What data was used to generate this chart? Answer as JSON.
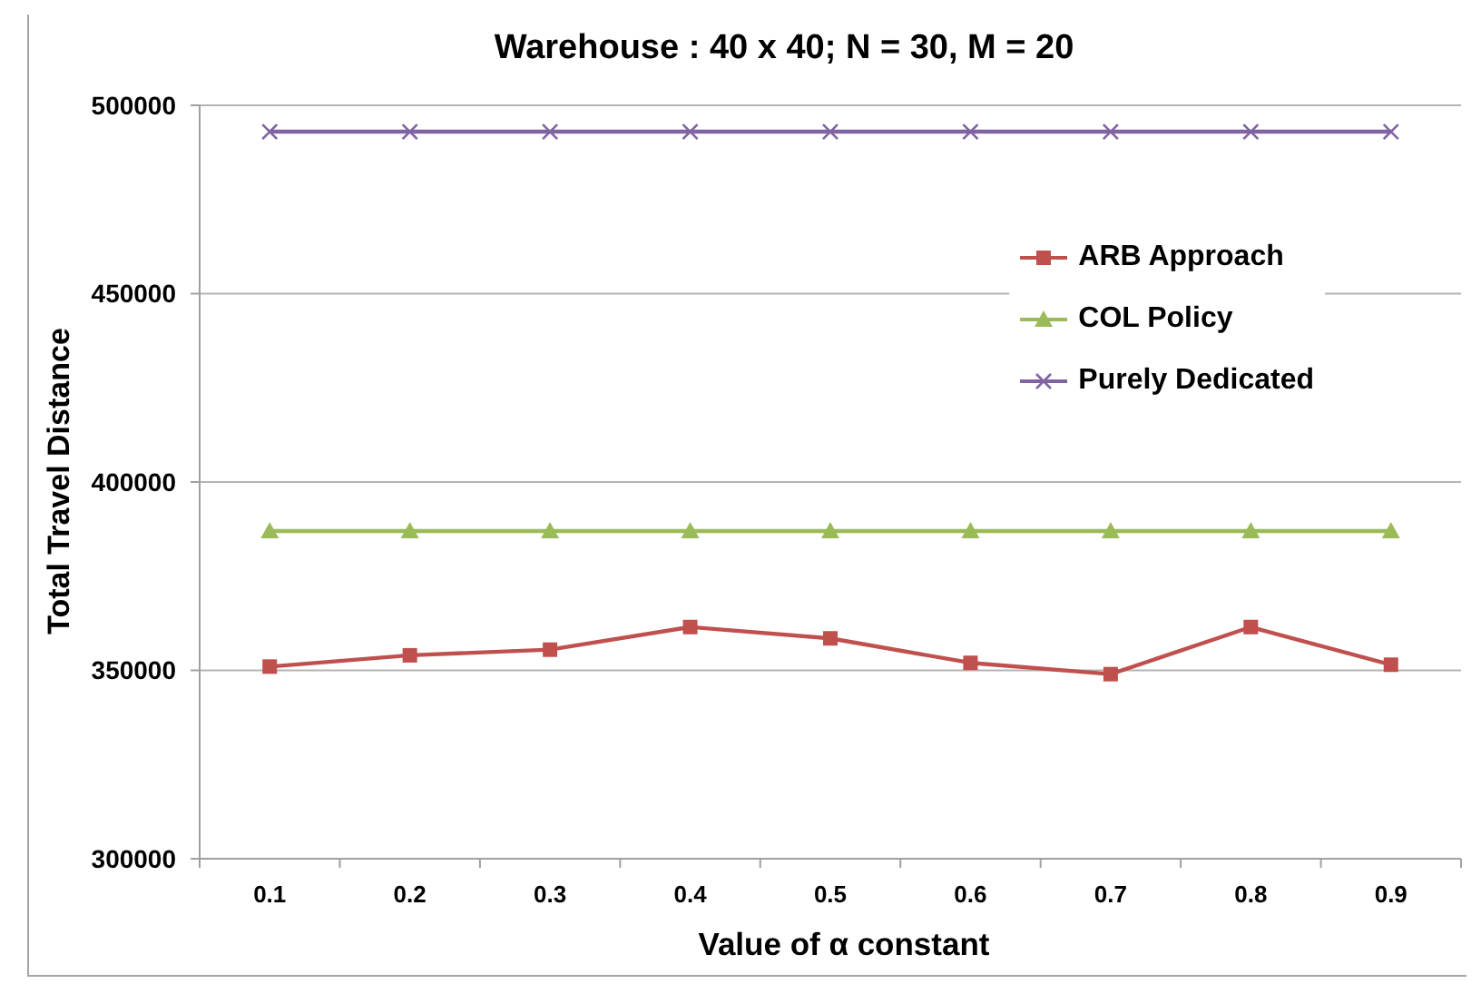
{
  "chart_data": {
    "type": "line",
    "title": "Warehouse : 40 x 40; N = 30, M = 20",
    "xlabel": "Value of α constant",
    "ylabel": "Total Travel Distance",
    "categories": [
      "0.1",
      "0.2",
      "0.3",
      "0.4",
      "0.5",
      "0.6",
      "0.7",
      "0.8",
      "0.9"
    ],
    "series": [
      {
        "name": "ARB Approach",
        "color": "#c0504d",
        "marker": "square",
        "values": [
          351000,
          354000,
          355500,
          361500,
          358500,
          352000,
          349000,
          361500,
          351500
        ]
      },
      {
        "name": "COL Policy",
        "color": "#9bbb59",
        "marker": "triangle",
        "values": [
          387000,
          387000,
          387000,
          387000,
          387000,
          387000,
          387000,
          387000,
          387000
        ]
      },
      {
        "name": "Purely Dedicated",
        "color": "#8064a2",
        "marker": "cross",
        "values": [
          493000,
          493000,
          493000,
          493000,
          493000,
          493000,
          493000,
          493000,
          493000
        ]
      }
    ],
    "ylim": [
      300000,
      500000
    ],
    "yticks": [
      300000,
      350000,
      400000,
      450000,
      500000
    ],
    "grid": "y",
    "legend": "top right"
  }
}
